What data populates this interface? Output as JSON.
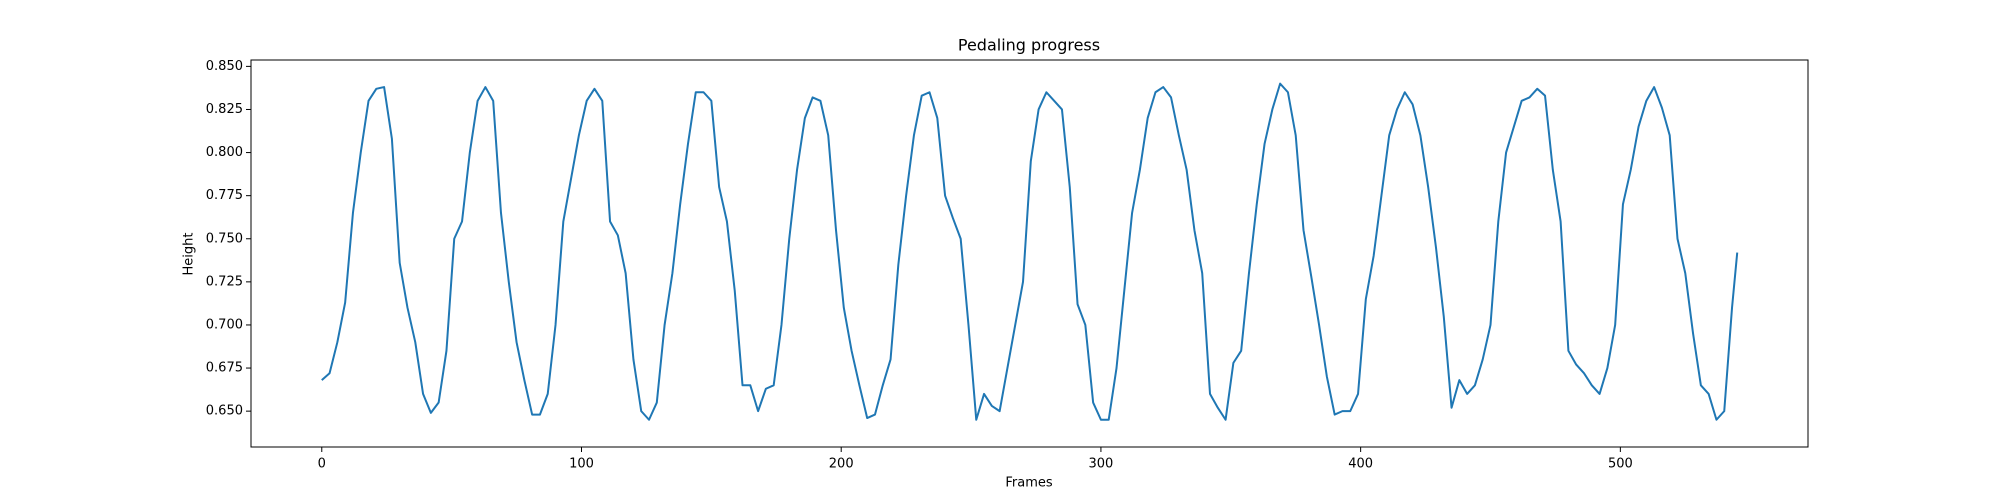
{
  "chart_data": {
    "type": "line",
    "title": "Pedaling progress",
    "x_label": "Frames",
    "y_label": "Height",
    "x": [
      0,
      3,
      6,
      9,
      12,
      15,
      18,
      21,
      24,
      27,
      30,
      33,
      36,
      39,
      42,
      45,
      48,
      51,
      54,
      57,
      60,
      63,
      66,
      69,
      72,
      75,
      78,
      81,
      84,
      87,
      90,
      93,
      96,
      99,
      102,
      105,
      108,
      111,
      114,
      117,
      120,
      123,
      126,
      129,
      132,
      135,
      138,
      141,
      144,
      147,
      150,
      153,
      156,
      159,
      162,
      165,
      168,
      171,
      174,
      177,
      180,
      183,
      186,
      189,
      192,
      195,
      198,
      201,
      204,
      207,
      210,
      213,
      216,
      219,
      222,
      225,
      228,
      231,
      234,
      237,
      240,
      243,
      246,
      249,
      252,
      255,
      258,
      261,
      264,
      267,
      270,
      273,
      276,
      279,
      282,
      285,
      288,
      291,
      294,
      297,
      300,
      303,
      306,
      309,
      312,
      315,
      318,
      321,
      324,
      327,
      330,
      333,
      336,
      339,
      342,
      345,
      348,
      351,
      354,
      357,
      360,
      363,
      366,
      369,
      372,
      375,
      378,
      381,
      384,
      387,
      390,
      393,
      396,
      399,
      402,
      405,
      408,
      411,
      414,
      417,
      420,
      423,
      426,
      429,
      432,
      435,
      438,
      441,
      444,
      447,
      450,
      453,
      456,
      459,
      462,
      465,
      468,
      471,
      474,
      477,
      480,
      483,
      486,
      489,
      492,
      495,
      498,
      501,
      504,
      507,
      510,
      513,
      516,
      519,
      522,
      525,
      528,
      531,
      534,
      537,
      540,
      543,
      545
    ],
    "series": [
      {
        "name": "Height",
        "color": "#1f77b4",
        "values": [
          0.668,
          0.672,
          0.69,
          0.713,
          0.765,
          0.8,
          0.83,
          0.837,
          0.838,
          0.808,
          0.736,
          0.71,
          0.69,
          0.66,
          0.649,
          0.655,
          0.685,
          0.75,
          0.76,
          0.8,
          0.83,
          0.838,
          0.83,
          0.765,
          0.725,
          0.69,
          0.668,
          0.648,
          0.648,
          0.66,
          0.7,
          0.76,
          0.785,
          0.81,
          0.83,
          0.837,
          0.83,
          0.76,
          0.752,
          0.73,
          0.68,
          0.65,
          0.645,
          0.655,
          0.7,
          0.73,
          0.77,
          0.805,
          0.835,
          0.835,
          0.83,
          0.78,
          0.76,
          0.72,
          0.665,
          0.665,
          0.65,
          0.663,
          0.665,
          0.7,
          0.75,
          0.79,
          0.82,
          0.832,
          0.83,
          0.81,
          0.755,
          0.71,
          0.685,
          0.665,
          0.646,
          0.648,
          0.665,
          0.68,
          0.735,
          0.775,
          0.81,
          0.833,
          0.835,
          0.82,
          0.775,
          0.762,
          0.75,
          0.7,
          0.645,
          0.66,
          0.653,
          0.65,
          0.675,
          0.7,
          0.725,
          0.795,
          0.825,
          0.835,
          0.83,
          0.825,
          0.78,
          0.712,
          0.7,
          0.655,
          0.645,
          0.645,
          0.675,
          0.72,
          0.765,
          0.79,
          0.82,
          0.835,
          0.838,
          0.832,
          0.81,
          0.79,
          0.755,
          0.73,
          0.66,
          0.652,
          0.645,
          0.678,
          0.685,
          0.73,
          0.77,
          0.805,
          0.825,
          0.84,
          0.835,
          0.81,
          0.755,
          0.728,
          0.7,
          0.67,
          0.648,
          0.65,
          0.65,
          0.66,
          0.715,
          0.74,
          0.775,
          0.81,
          0.825,
          0.835,
          0.828,
          0.81,
          0.78,
          0.745,
          0.705,
          0.652,
          0.668,
          0.66,
          0.665,
          0.68,
          0.7,
          0.76,
          0.8,
          0.815,
          0.83,
          0.832,
          0.837,
          0.833,
          0.79,
          0.76,
          0.685,
          0.677,
          0.672,
          0.665,
          0.66,
          0.675,
          0.7,
          0.77,
          0.79,
          0.815,
          0.83,
          0.838,
          0.826,
          0.81,
          0.75,
          0.73,
          0.695,
          0.665,
          0.66,
          0.645,
          0.65,
          0.71,
          0.742
        ]
      }
    ],
    "xlim": [
      -27.25,
      572.25
    ],
    "ylim": [
      0.6292,
      0.8537
    ],
    "xticks": [
      0,
      100,
      200,
      300,
      400,
      500
    ],
    "yticks": [
      {
        "value": 0.65,
        "label": "0.650"
      },
      {
        "value": 0.675,
        "label": "0.675"
      },
      {
        "value": 0.7,
        "label": "0.700"
      },
      {
        "value": 0.725,
        "label": "0.725"
      },
      {
        "value": 0.75,
        "label": "0.750"
      },
      {
        "value": 0.775,
        "label": "0.775"
      },
      {
        "value": 0.8,
        "label": "0.800"
      },
      {
        "value": 0.825,
        "label": "0.825"
      },
      {
        "value": 0.85,
        "label": "0.850"
      }
    ]
  }
}
